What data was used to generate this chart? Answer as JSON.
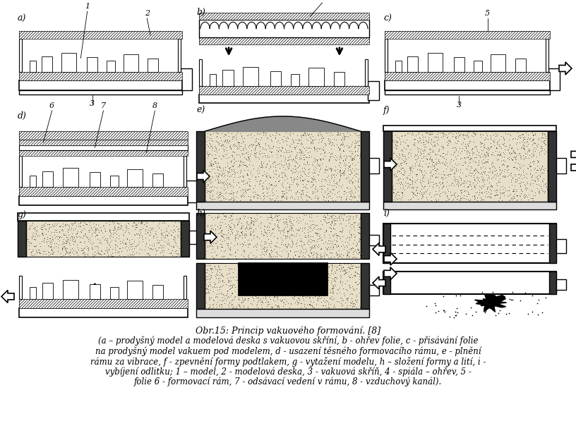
{
  "title": "Obr.15: Princip vakuového formování. [8]",
  "caption_lines": [
    "(a – prodyšný model a modelová deska s vakuovou skříní, b - ohřev folie, c - přisávání folie",
    "na prodyšný model vakuem pod modelem, d - usazení těsného formovacího rámu, e - plnění",
    "rámu za vibrace, f - zpevnění formy podtlakem, g - vytažení modelu, h – složení formy a lití, i -",
    "vybíjení odlitku; 1 – model, 2 - modelová deska, 3 - vakuová skříň, 4 - spiála – ohřev, 5 -",
    "folie 6 - formovací rám, 7 - odsávací vedení v rámu, 8 - vzduchový kanál)."
  ],
  "bg_color": "#ffffff"
}
